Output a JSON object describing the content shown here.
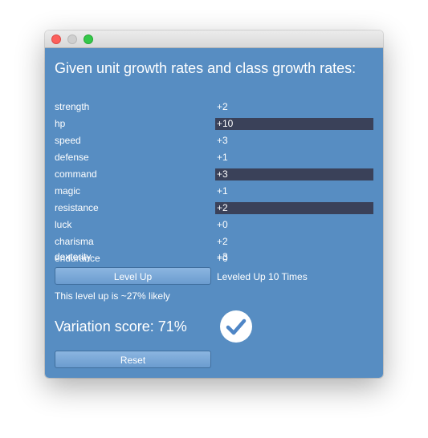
{
  "heading": "Given unit growth rates and class growth rates:",
  "stats": [
    {
      "name": "strength",
      "value": "+2",
      "highlighted": false
    },
    {
      "name": "hp",
      "value": "+10",
      "highlighted": true
    },
    {
      "name": "speed",
      "value": "+3",
      "highlighted": false
    },
    {
      "name": "defense",
      "value": "+1",
      "highlighted": false
    },
    {
      "name": "command",
      "value": "+3",
      "highlighted": true
    },
    {
      "name": "magic",
      "value": "+1",
      "highlighted": false
    },
    {
      "name": "resistance",
      "value": "+2",
      "highlighted": true
    },
    {
      "name": "luck",
      "value": "+0",
      "highlighted": false
    },
    {
      "name": "charisma",
      "value": "+2",
      "highlighted": false
    },
    {
      "name": "endurance",
      "value": "+0",
      "highlighted": false
    },
    {
      "name": "dexterity",
      "value": "+3",
      "highlighted": false
    }
  ],
  "level_up_button": "Level Up",
  "level_status": "Leveled Up 10 Times",
  "likelihood": "This level up is ~27% likely",
  "variation": "Variation score: 71%",
  "check_icon": "checkmark-circle-icon",
  "reset_button": "Reset",
  "colors": {
    "content_bg": "#578dc2",
    "highlight_bg": "#3a4159",
    "check_color": "#4f86c6"
  }
}
